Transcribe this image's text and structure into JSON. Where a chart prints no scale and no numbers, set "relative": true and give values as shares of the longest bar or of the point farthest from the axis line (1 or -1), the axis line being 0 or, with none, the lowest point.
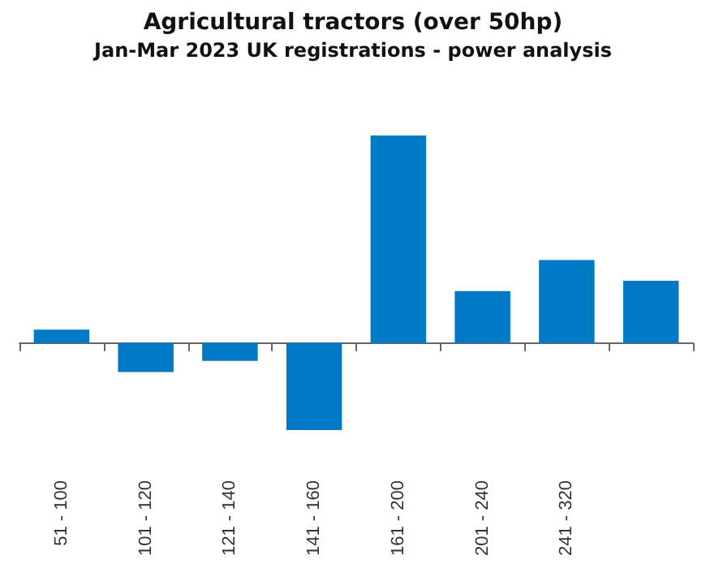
{
  "chart_data": {
    "type": "bar",
    "title": "Agricultural tractors (over 50hp)",
    "subtitle": "Jan-Mar 2023 UK registrations - power analysis",
    "categories": [
      "51 - 100",
      "101 - 120",
      "121 - 140",
      "141 - 160",
      "161 - 200",
      "201 - 240",
      "241 - 320",
      null
    ],
    "values": [
      0.064,
      -0.14,
      -0.086,
      -0.42,
      1,
      0.25,
      0.4,
      0.3
    ],
    "color": "#0079c6",
    "relative": true
  }
}
